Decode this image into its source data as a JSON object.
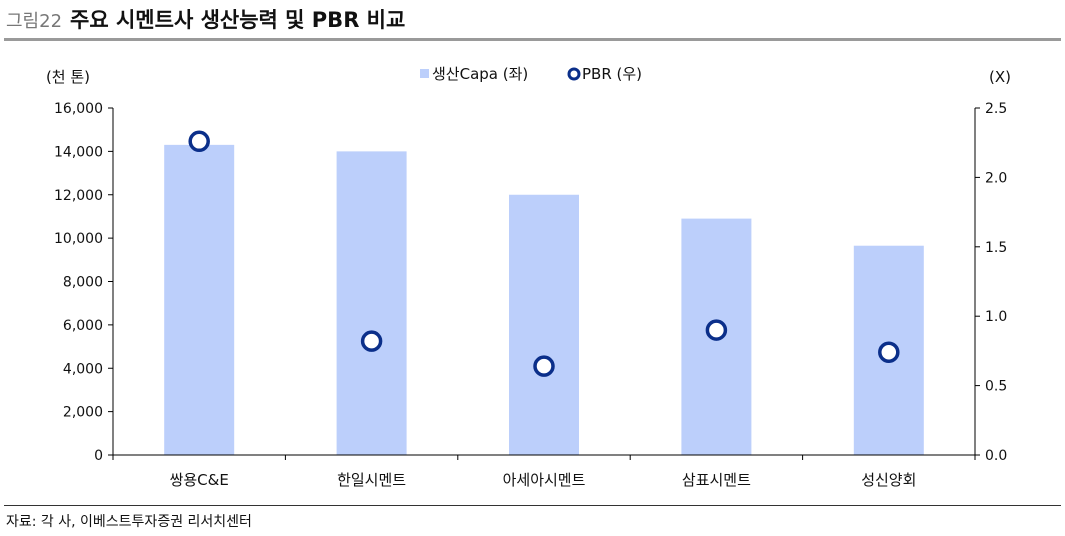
{
  "header": {
    "figure_label": "그림22",
    "title": "주요 시멘트사 생산능력 및 PBR 비교"
  },
  "source": "자료: 각 사, 이베스트투자증권 리서치센터",
  "colors": {
    "bar": "#bccffb",
    "marker": "#0b2f8a",
    "axis": "#000000"
  },
  "chart_data": {
    "type": "bar",
    "categories": [
      "쌍용C&E",
      "한일시멘트",
      "아세아시멘트",
      "삼표시멘트",
      "성신양회"
    ],
    "series": [
      {
        "name": "생산Capa (좌)",
        "type": "bar",
        "axis": "left",
        "values": [
          14300,
          14000,
          12000,
          10900,
          9650
        ]
      },
      {
        "name": "PBR (우)",
        "type": "scatter",
        "axis": "right",
        "values": [
          2.26,
          0.82,
          0.64,
          0.9,
          0.74
        ]
      }
    ],
    "ylabel_left": "(천 톤)",
    "ylabel_right": "(X)",
    "ylim_left": [
      0,
      16000
    ],
    "ylim_right": [
      0,
      2.5
    ],
    "yticks_left": [
      "0",
      "2,000",
      "4,000",
      "6,000",
      "8,000",
      "10,000",
      "12,000",
      "14,000",
      "16,000"
    ],
    "yticks_right": [
      "0.0",
      "0.5",
      "1.0",
      "1.5",
      "2.0",
      "2.5"
    ],
    "legend_position": "top-center",
    "grid": false
  }
}
